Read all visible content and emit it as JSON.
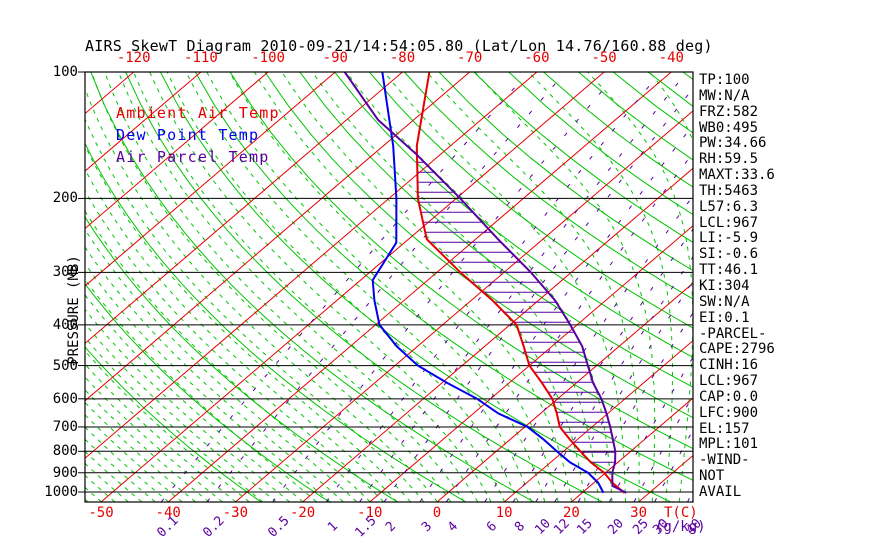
{
  "title": "AIRS SkewT Diagram 2010-09-21/14:54:05.80 (Lat/Lon 14.76/160.88 deg)",
  "legend": {
    "ambient": "Ambient Air Temp",
    "dew": "Dew Point Temp",
    "parcel": "Air Parcel Temp"
  },
  "axes": {
    "pressure_axis_label": "PRESSURE (MB)",
    "pressure_ticks": [
      100,
      200,
      300,
      400,
      500,
      600,
      700,
      800,
      900,
      1000
    ],
    "top_temp_ticks": [
      -120,
      -110,
      -100,
      -90,
      -80,
      -70,
      -60,
      -50,
      -40
    ],
    "bottom_temp_ticks": [
      -50,
      -40,
      -30,
      -20,
      -10,
      0,
      10,
      20,
      30
    ],
    "temp_unit_label": "T(C)",
    "mixing_unit_label": "(g/kg)",
    "mixing_ratio_ticks": [
      0.1,
      0.2,
      0.5,
      1,
      1.5,
      2,
      3,
      4,
      6,
      8,
      10,
      12,
      15,
      20,
      25,
      30,
      40
    ]
  },
  "stats": [
    "TP:100",
    "MW:N/A",
    "FRZ:582",
    "WB0:495",
    "PW:34.66",
    "RH:59.5",
    "MAXT:33.6",
    "TH:5463",
    "L57:6.3",
    "LCL:967",
    "LI:-5.9",
    "SI:-0.6",
    "TT:46.1",
    "KI:304",
    "SW:N/A",
    "EI:0.1",
    "-PARCEL-",
    "CAPE:2796",
    "CINH:16",
    "LCL:967",
    "CAP:0.0",
    "LFC:900",
    "EL:157",
    "MPL:101",
    "-WIND-",
    "NOT",
    "AVAIL"
  ],
  "colors": {
    "isotherm": "#e60000",
    "adiabat": "#00c400",
    "mixing": "#5a00a0",
    "ambient": "#e60000",
    "dew": "#0000ee",
    "parcel": "#5a00a0",
    "frame": "#000000",
    "background": "#ffffff"
  },
  "chart_data": {
    "type": "line",
    "title": "AIRS SkewT Diagram 2010-09-21/14:54:05.80 (Lat/Lon 14.76/160.88 deg)",
    "x_axis": {
      "label": "T(C)",
      "skewed": true,
      "top_ticks": [
        -120,
        -110,
        -100,
        -90,
        -80,
        -70,
        -60,
        -50,
        -40
      ],
      "bottom_ticks": [
        -50,
        -40,
        -30,
        -20,
        -10,
        0,
        10,
        20,
        30
      ]
    },
    "y_axis": {
      "label": "PRESSURE (MB)",
      "scale": "log",
      "range_mb": [
        100,
        1055
      ],
      "ticks": [
        100,
        200,
        300,
        400,
        500,
        600,
        700,
        800,
        900,
        1000
      ]
    },
    "series": [
      {
        "name": "Ambient Air Temp",
        "color_key": "ambient",
        "points_p_t": [
          [
            100,
            -76
          ],
          [
            150,
            -65
          ],
          [
            200,
            -55.7
          ],
          [
            250,
            -47.3
          ],
          [
            300,
            -36.5
          ],
          [
            350,
            -26.8
          ],
          [
            400,
            -19
          ],
          [
            450,
            -14.2
          ],
          [
            500,
            -10
          ],
          [
            550,
            -5.1
          ],
          [
            600,
            -0.8
          ],
          [
            650,
            2.4
          ],
          [
            700,
            5.2
          ],
          [
            750,
            8.9
          ],
          [
            800,
            12.5
          ],
          [
            850,
            16
          ],
          [
            900,
            19.8
          ],
          [
            950,
            22.7
          ],
          [
            1005,
            26.3
          ]
        ]
      },
      {
        "name": "Dew Point Temp",
        "color_key": "dew",
        "points_p_t": [
          [
            100,
            -83
          ],
          [
            150,
            -68.5
          ],
          [
            200,
            -58.9
          ],
          [
            255,
            -51.2
          ],
          [
            313,
            -48.2
          ],
          [
            350,
            -44.4
          ],
          [
            400,
            -39.4
          ],
          [
            450,
            -33.1
          ],
          [
            500,
            -26.6
          ],
          [
            550,
            -19.2
          ],
          [
            600,
            -12
          ],
          [
            650,
            -6.3
          ],
          [
            700,
            0.4
          ],
          [
            750,
            5
          ],
          [
            800,
            9
          ],
          [
            850,
            12.9
          ],
          [
            900,
            17.4
          ],
          [
            950,
            20.6
          ],
          [
            1005,
            23.2
          ]
        ]
      },
      {
        "name": "Air Parcel Temp",
        "color_key": "parcel",
        "points_p_t": [
          [
            100,
            -88.6
          ],
          [
            130,
            -75.3
          ],
          [
            157,
            -63.6
          ],
          [
            200,
            -49.4
          ],
          [
            250,
            -36.7
          ],
          [
            300,
            -26
          ],
          [
            350,
            -17.5
          ],
          [
            400,
            -11
          ],
          [
            450,
            -5.5
          ],
          [
            500,
            -1.3
          ],
          [
            550,
            2.5
          ],
          [
            600,
            6.5
          ],
          [
            650,
            9.8
          ],
          [
            700,
            12.7
          ],
          [
            750,
            15.3
          ],
          [
            800,
            17.7
          ],
          [
            850,
            19.6
          ],
          [
            900,
            21
          ],
          [
            967,
            23.3
          ],
          [
            1005,
            26.6
          ]
        ]
      }
    ],
    "hatch_between": {
      "series": [
        "Ambient Air Temp",
        "Air Parcel Temp"
      ],
      "from_mb": 157,
      "to_mb": 900
    },
    "background_lines": {
      "isotherms_c": {
        "min": -160,
        "max": 40,
        "step": 10
      },
      "dry_adiabats_theta_c": {
        "min": -30,
        "max": 190,
        "step": 10
      },
      "moist_adiabats_surface_c": {
        "min": -52,
        "max": 40,
        "step": 2
      },
      "mixing_ratio_g_kg": [
        0.1,
        0.2,
        0.5,
        1,
        1.5,
        2,
        3,
        4,
        6,
        8,
        10,
        12,
        15,
        20,
        25,
        30,
        40
      ]
    }
  }
}
